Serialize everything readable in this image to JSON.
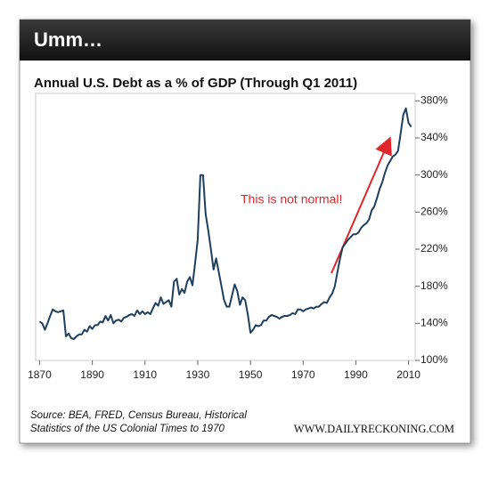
{
  "header": "Umm…",
  "chart_data": {
    "type": "line",
    "title": "Annual U.S. Debt as a % of GDP (Through Q1 2011)",
    "annotation": "This is not normal!",
    "source": "Source: BEA, FRED, Census Bureau, Historical Statistics of the US Colonial Times to 1970",
    "credit": "WWW.DAILYRECKONING.COM",
    "color": "#1f3f5f",
    "xlim": [
      1868.5,
      2012.5
    ],
    "xticks": [
      1870,
      1890,
      1910,
      1930,
      1950,
      1970,
      1990,
      2010
    ],
    "ylim": [
      100,
      388
    ],
    "yticks": [
      {
        "value": 100,
        "label": "100%"
      },
      {
        "value": 140,
        "label": "140%"
      },
      {
        "value": 180,
        "label": "180%"
      },
      {
        "value": 220,
        "label": "220%"
      },
      {
        "value": 260,
        "label": "260%"
      },
      {
        "value": 300,
        "label": "300%"
      },
      {
        "value": 340,
        "label": "340%"
      },
      {
        "value": 380,
        "label": "380%"
      }
    ],
    "x": [
      1870,
      1871,
      1872,
      1873,
      1874,
      1875,
      1876,
      1877,
      1878,
      1879,
      1880,
      1881,
      1882,
      1883,
      1884,
      1885,
      1886,
      1887,
      1888,
      1889,
      1890,
      1891,
      1892,
      1893,
      1894,
      1895,
      1896,
      1897,
      1898,
      1899,
      1900,
      1901,
      1902,
      1903,
      1904,
      1905,
      1906,
      1907,
      1908,
      1909,
      1910,
      1911,
      1912,
      1913,
      1914,
      1915,
      1916,
      1917,
      1918,
      1919,
      1920,
      1921,
      1922,
      1923,
      1924,
      1925,
      1926,
      1927,
      1928,
      1929,
      1930,
      1931,
      1932,
      1933,
      1934,
      1935,
      1936,
      1937,
      1938,
      1939,
      1940,
      1941,
      1942,
      1943,
      1944,
      1945,
      1946,
      1947,
      1948,
      1949,
      1950,
      1951,
      1952,
      1953,
      1954,
      1955,
      1956,
      1957,
      1958,
      1959,
      1960,
      1961,
      1962,
      1963,
      1964,
      1965,
      1966,
      1967,
      1968,
      1969,
      1970,
      1971,
      1972,
      1973,
      1974,
      1975,
      1976,
      1977,
      1978,
      1979,
      1980,
      1981,
      1982,
      1983,
      1984,
      1985,
      1986,
      1987,
      1988,
      1989,
      1990,
      1991,
      1992,
      1993,
      1994,
      1995,
      1996,
      1997,
      1998,
      1999,
      2000,
      2001,
      2002,
      2003,
      2004,
      2005,
      2006,
      2007,
      2008,
      2009,
      2010,
      2011
    ],
    "values": [
      142,
      140,
      133,
      140,
      148,
      155,
      153,
      152,
      153,
      154,
      126,
      129,
      124,
      123,
      126,
      128,
      128,
      133,
      131,
      137,
      134,
      138,
      138,
      142,
      141,
      148,
      143,
      149,
      140,
      143,
      144,
      142,
      146,
      147,
      149,
      150,
      148,
      154,
      150,
      153,
      150,
      152,
      150,
      156,
      162,
      159,
      168,
      161,
      163,
      165,
      158,
      185,
      188,
      171,
      177,
      173,
      185,
      190,
      181,
      205,
      230,
      300,
      300,
      258,
      240,
      220,
      198,
      210,
      195,
      180,
      165,
      158,
      158,
      170,
      182,
      175,
      160,
      168,
      165,
      150,
      130,
      133,
      138,
      137,
      138,
      143,
      143,
      147,
      149,
      148,
      147,
      145,
      147,
      148,
      148,
      149,
      151,
      150,
      155,
      155,
      153,
      155,
      156,
      157,
      156,
      158,
      158,
      161,
      163,
      162,
      168,
      172,
      180,
      195,
      210,
      222,
      226,
      230,
      233,
      236,
      236,
      238,
      243,
      246,
      248,
      252,
      262,
      266,
      275,
      285,
      292,
      302,
      310,
      315,
      320,
      322,
      326,
      345,
      365,
      372,
      356,
      352
    ]
  }
}
